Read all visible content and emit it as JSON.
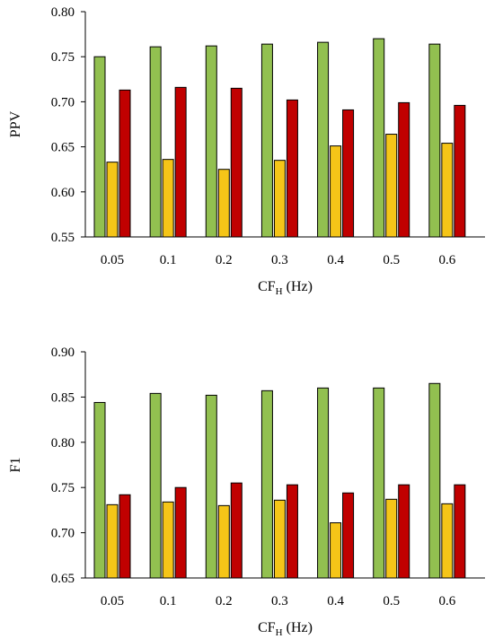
{
  "chart_data": [
    {
      "type": "bar",
      "title": "",
      "xlabel_main": "CF",
      "xlabel_sub": "H",
      "xlabel_unit": " (Hz)",
      "ylabel": "PPV",
      "categories": [
        "0.05",
        "0.1",
        "0.2",
        "0.3",
        "0.4",
        "0.5",
        "0.6"
      ],
      "ylim": [
        0.55,
        0.8
      ],
      "yticks": [
        "0.55",
        "0.60",
        "0.65",
        "0.70",
        "0.75",
        "0.80"
      ],
      "series": [
        {
          "color": "#92c050",
          "values": [
            0.75,
            0.761,
            0.762,
            0.764,
            0.766,
            0.77,
            0.764
          ]
        },
        {
          "color": "#f5c518",
          "values": [
            0.633,
            0.636,
            0.625,
            0.635,
            0.651,
            0.664,
            0.654
          ]
        },
        {
          "color": "#c00000",
          "values": [
            0.713,
            0.716,
            0.715,
            0.702,
            0.691,
            0.699,
            0.696
          ]
        }
      ]
    },
    {
      "type": "bar",
      "title": "",
      "xlabel_main": "CF",
      "xlabel_sub": "H",
      "xlabel_unit": " (Hz)",
      "ylabel": "F1",
      "categories": [
        "0.05",
        "0.1",
        "0.2",
        "0.3",
        "0.4",
        "0.5",
        "0.6"
      ],
      "ylim": [
        0.65,
        0.9
      ],
      "yticks": [
        "0.65",
        "0.70",
        "0.75",
        "0.80",
        "0.85",
        "0.90"
      ],
      "series": [
        {
          "color": "#92c050",
          "values": [
            0.844,
            0.854,
            0.852,
            0.857,
            0.86,
            0.86,
            0.865
          ]
        },
        {
          "color": "#f5c518",
          "values": [
            0.731,
            0.734,
            0.73,
            0.736,
            0.711,
            0.737,
            0.732
          ]
        },
        {
          "color": "#c00000",
          "values": [
            0.742,
            0.75,
            0.755,
            0.753,
            0.744,
            0.753,
            0.753
          ]
        }
      ]
    }
  ]
}
